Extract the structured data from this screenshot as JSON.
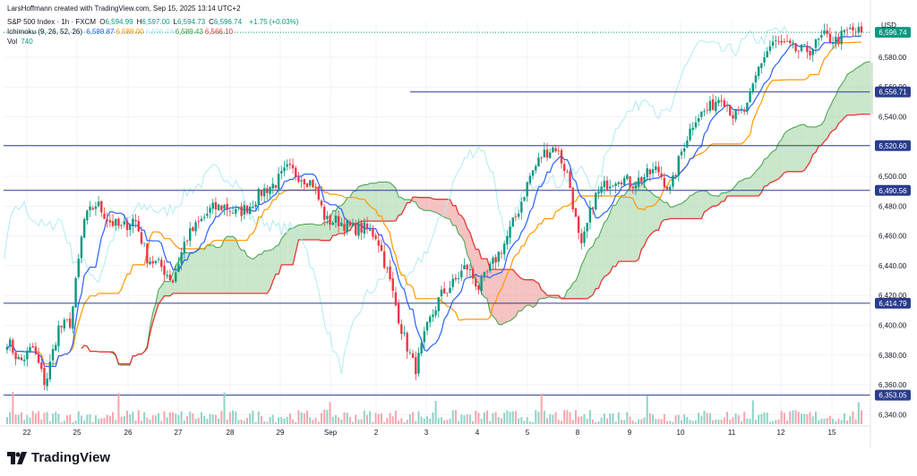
{
  "header": {
    "credit": "LarsHoffmann created with TradingView.com, Sep 15, 2025 13:14 UTC+2",
    "symbol": "S&P 500 Index · 1h · FXCM",
    "ohlc": [
      {
        "k": "O",
        "v": "6,594.99"
      },
      {
        "k": "H",
        "v": "6,597.00"
      },
      {
        "k": "L",
        "v": "6,594.73"
      },
      {
        "k": "C",
        "v": "6,596.74"
      }
    ],
    "change": "+1.75 (+0.03%)",
    "ichimoku_label": "Ichimoku (9, 26, 52, 26)",
    "ichimoku_values": [
      {
        "v": "6,589.87",
        "color": "#2962ff"
      },
      {
        "v": "6,589.00",
        "color": "#ff9800"
      },
      {
        "v": "6,596.74",
        "color": "#b2ebf2"
      },
      {
        "v": "6,589.43",
        "color": "#43a047"
      },
      {
        "v": "6,566.10",
        "color": "#e53935"
      }
    ],
    "vol_label": "Vol",
    "vol_value": "740"
  },
  "currency": "USD",
  "brand": "TradingView",
  "colors": {
    "up": "#089981",
    "down": "#f23645",
    "tenkan": "#2962ff",
    "kijun": "#ff9800",
    "chikou": "#b2ebf2",
    "span_a": "#43a047",
    "span_b": "#e53935",
    "level": "#2a3d8f",
    "cloud_up": "#a5d6a7",
    "cloud_down": "#ef9a9a"
  },
  "chart_data": {
    "type": "candlestick",
    "title": "S&P 500 Index · 1h · FXCM",
    "x_ticks": [
      "22",
      "25",
      "26",
      "27",
      "28",
      "29",
      "Sep",
      "2",
      "3",
      "4",
      "5",
      "8",
      "9",
      "10",
      "11",
      "12",
      "15"
    ],
    "y_ticks": [
      "6,340.00",
      "6,360.00",
      "6,380.00",
      "6,400.00",
      "6,420.00",
      "6,440.00",
      "6,460.00",
      "6,480.00",
      "6,500.00",
      "6,520.00",
      "6,540.00",
      "6,560.00",
      "6,580.00"
    ],
    "ylim": [
      6336,
      6604
    ],
    "levels": [
      {
        "label": "6,556.71",
        "value": 6556.71
      },
      {
        "label": "6,520.60",
        "value": 6520.6
      },
      {
        "label": "6,490.56",
        "value": 6490.56
      },
      {
        "label": "6,414.79",
        "value": 6414.79
      },
      {
        "label": "6,353.05",
        "value": 6353.05
      }
    ],
    "last_price": {
      "label": "6,596.74",
      "value": 6596.74
    },
    "price_path": [
      [
        "Aug 22",
        6390
      ],
      [
        "Aug 22",
        6375
      ],
      [
        "Aug 22",
        6385
      ],
      [
        "Aug 22",
        6360
      ],
      [
        "Aug 22",
        6398
      ],
      [
        "Aug 22",
        6402
      ],
      [
        "Aug 25",
        6470
      ],
      [
        "Aug 25",
        6482
      ],
      [
        "Aug 25",
        6470
      ],
      [
        "Aug 25",
        6465
      ],
      [
        "Aug 26",
        6472
      ],
      [
        "Aug 26",
        6445
      ],
      [
        "Aug 26",
        6440
      ],
      [
        "Aug 26",
        6430
      ],
      [
        "Aug 27",
        6458
      ],
      [
        "Aug 27",
        6468
      ],
      [
        "Aug 27",
        6478
      ],
      [
        "Aug 27",
        6480
      ],
      [
        "Aug 28",
        6475
      ],
      [
        "Aug 28",
        6480
      ],
      [
        "Aug 28",
        6490
      ],
      [
        "Aug 28",
        6495
      ],
      [
        "Aug 29",
        6505
      ],
      [
        "Aug 29",
        6500
      ],
      [
        "Aug 29",
        6495
      ],
      [
        "Aug 29",
        6470
      ],
      [
        "Sep",
        6470
      ],
      [
        "Sep",
        6465
      ],
      [
        "Sep 2",
        6465
      ],
      [
        "Sep 2",
        6460
      ],
      [
        "Sep 2",
        6430
      ],
      [
        "Sep 2",
        6395
      ],
      [
        "Sep 3",
        6370
      ],
      [
        "Sep 3",
        6400
      ],
      [
        "Sep 3",
        6420
      ],
      [
        "Sep 3",
        6428
      ],
      [
        "Sep 4",
        6440
      ],
      [
        "Sep 4",
        6425
      ],
      [
        "Sep 4",
        6440
      ],
      [
        "Sep 4",
        6455
      ],
      [
        "Sep 5",
        6475
      ],
      [
        "Sep 5",
        6500
      ],
      [
        "Sep 5",
        6515
      ],
      [
        "Sep 5",
        6520
      ],
      [
        "Sep 8",
        6500
      ],
      [
        "Sep 8",
        6450
      ],
      [
        "Sep 8",
        6485
      ],
      [
        "Sep 8",
        6495
      ],
      [
        "Sep 9",
        6500
      ],
      [
        "Sep 9",
        6495
      ],
      [
        "Sep 9",
        6500
      ],
      [
        "Sep 9",
        6505
      ],
      [
        "Sep 10",
        6490
      ],
      [
        "Sep 10",
        6520
      ],
      [
        "Sep 10",
        6540
      ],
      [
        "Sep 10",
        6545
      ],
      [
        "Sep 11",
        6555
      ],
      [
        "Sep 11",
        6540
      ],
      [
        "Sep 11",
        6545
      ],
      [
        "Sep 11",
        6575
      ],
      [
        "Sep 12",
        6590
      ],
      [
        "Sep 12",
        6588
      ],
      [
        "Sep 12",
        6584
      ],
      [
        "Sep 12",
        6585
      ],
      [
        "Sep 15",
        6594
      ],
      [
        "Sep 15",
        6591
      ],
      [
        "Sep 15",
        6598
      ],
      [
        "Sep 15",
        6596.74
      ]
    ]
  }
}
